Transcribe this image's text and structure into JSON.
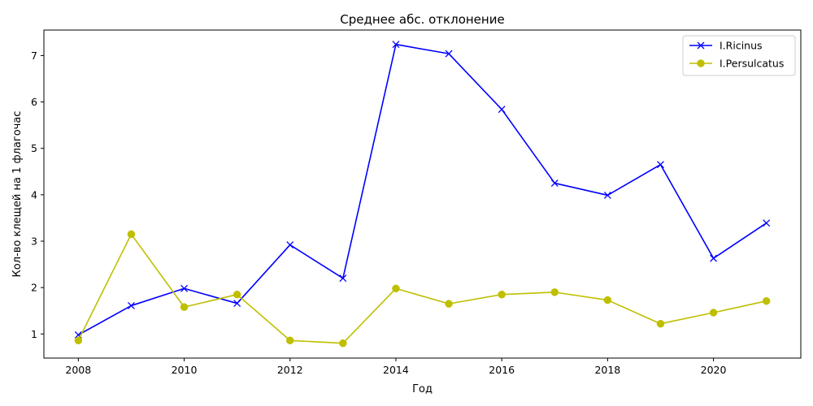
{
  "chart_data": {
    "type": "line",
    "title": "Среднее абс. отклонение",
    "xlabel": "Год",
    "ylabel": "Кол-во клещей на 1 флагочас",
    "xlim": [
      2007.35,
      2021.65
    ],
    "ylim": [
      0.48,
      7.55
    ],
    "xticks": [
      2008,
      2010,
      2012,
      2014,
      2016,
      2018,
      2020
    ],
    "yticks": [
      1,
      2,
      3,
      4,
      5,
      6,
      7
    ],
    "grid": false,
    "legend_position": "top-right",
    "x": [
      2008,
      2009,
      2010,
      2011,
      2012,
      2013,
      2014,
      2015,
      2016,
      2017,
      2018,
      2019,
      2020,
      2021
    ],
    "series": [
      {
        "name": "I.Ricinus",
        "color": "#0000ff",
        "marker": "x",
        "values": [
          0.98,
          1.61,
          1.98,
          1.66,
          2.92,
          2.2,
          7.24,
          7.04,
          5.84,
          4.25,
          3.99,
          4.65,
          2.63,
          3.39
        ]
      },
      {
        "name": "I.Persulcatus",
        "color": "#bfbf00",
        "marker": "circle",
        "values": [
          0.86,
          3.15,
          1.58,
          1.85,
          0.86,
          0.8,
          1.98,
          1.65,
          1.85,
          1.9,
          1.73,
          1.22,
          1.46,
          1.71
        ]
      }
    ]
  }
}
